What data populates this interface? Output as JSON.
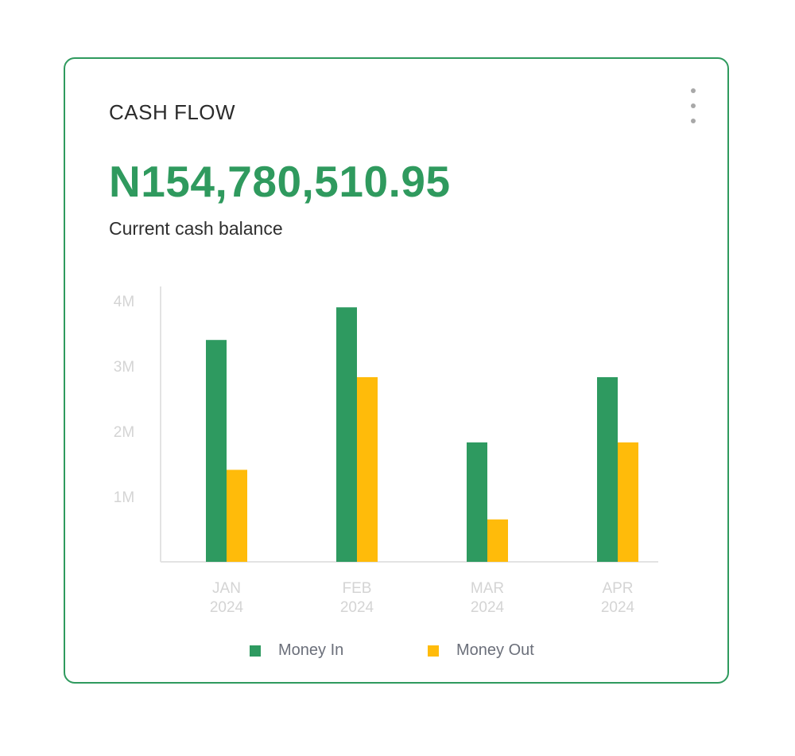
{
  "card": {
    "title": "CASH FLOW",
    "balance": "N154,780,510.95",
    "caption": "Current cash balance",
    "menu_icon": "more-vertical-icon"
  },
  "colors": {
    "accent": "#2f9a5e",
    "money_in": "#2e9a60",
    "money_out": "#ffbb0a",
    "axis_text": "#d4d4d4",
    "axis_line": "#e3e3e3"
  },
  "chart_data": {
    "type": "bar",
    "title": "",
    "xlabel": "",
    "ylabel": "",
    "categories": [
      [
        "JAN",
        "2024"
      ],
      [
        "FEB",
        "2024"
      ],
      [
        "MAR",
        "2024"
      ],
      [
        "APR",
        "2024"
      ]
    ],
    "series": [
      {
        "name": "Money In",
        "values": [
          3.4,
          3.9,
          1.83,
          2.83
        ]
      },
      {
        "name": "Money Out",
        "values": [
          1.41,
          2.83,
          0.65,
          1.83
        ]
      }
    ],
    "yticks": [
      {
        "value": 1,
        "label": "1M"
      },
      {
        "value": 2,
        "label": "2M"
      },
      {
        "value": 3,
        "label": "3M"
      },
      {
        "value": 4,
        "label": "4M"
      }
    ],
    "ylim": [
      0,
      4.25
    ],
    "grid": false,
    "legend_position": "bottom-center"
  }
}
